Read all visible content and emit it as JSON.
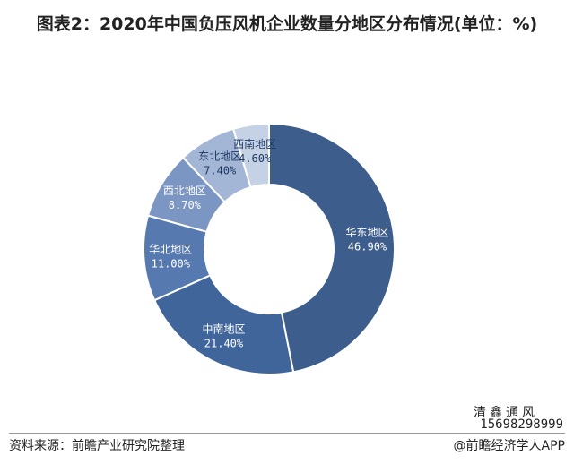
{
  "title": "图表2：2020年中国负压风机企业数量分地区分布情况(单位：%)",
  "chart_data": {
    "type": "pie",
    "title": "图表2：2020年中国负压风机企业数量分地区分布情况(单位：%)",
    "categories": [
      "华东地区",
      "中南地区",
      "华北地区",
      "西北地区",
      "东北地区",
      "西南地区"
    ],
    "values": [
      46.9,
      21.4,
      11.0,
      8.7,
      7.4,
      4.6
    ],
    "value_labels": [
      "46.90%",
      "21.40%",
      "11.00%",
      "8.70%",
      "7.40%",
      "4.60%"
    ],
    "colors": [
      "#3d5d8c",
      "#3f659b",
      "#5679b0",
      "#7c96c3",
      "#a4b6d6",
      "#c5d1e5"
    ],
    "donut": true,
    "legend": "none"
  },
  "signature": {
    "name": "清鑫通风",
    "phone": "15698298999"
  },
  "footer": {
    "source": "资料来源：前瞻产业研究院整理",
    "credit": "@前瞻经济学人APP"
  }
}
